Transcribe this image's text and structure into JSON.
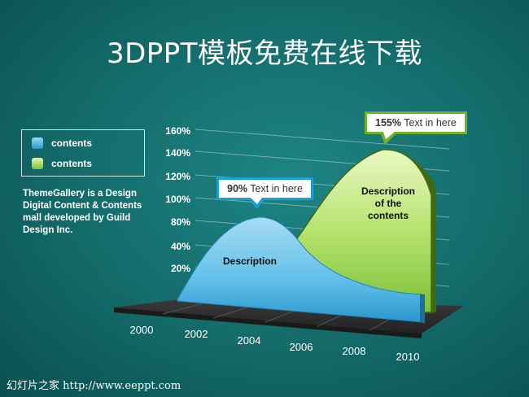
{
  "title": "3DPPT模板免费在线下载",
  "legend": {
    "items": [
      {
        "label": "contents",
        "color": "#4fb4e6"
      },
      {
        "label": "contents",
        "color": "#9ad34c"
      }
    ]
  },
  "side_description": "ThemeGallery is a Design Digital Content & Contents mall developed by Guild Design Inc.",
  "callouts": {
    "blue": {
      "value": "90%",
      "text": " Text in here"
    },
    "green": {
      "value": "155%",
      "text": " Text in here"
    }
  },
  "descriptions": {
    "blue": "Description",
    "green_line1": "Description",
    "green_line2": "of the",
    "green_line3": "contents"
  },
  "footer": "幻灯片之家 http://www.eeppt.com",
  "colors": {
    "blue_series": "#4fb4e6",
    "green_series": "#9ad34c",
    "floor": "#2b2b2b"
  },
  "chart_data": {
    "type": "area",
    "x": [
      "2000",
      "2002",
      "2004",
      "2006",
      "2008",
      "2010"
    ],
    "y_ticks": [
      "20%",
      "40%",
      "80%",
      "100%",
      "120%",
      "140%",
      "160%"
    ],
    "series": [
      {
        "values": [
          0,
          55,
          90,
          55,
          35,
          25
        ]
      },
      {
        "values": [
          null,
          null,
          null,
          105,
          155,
          130
        ]
      }
    ],
    "grid": true
  }
}
